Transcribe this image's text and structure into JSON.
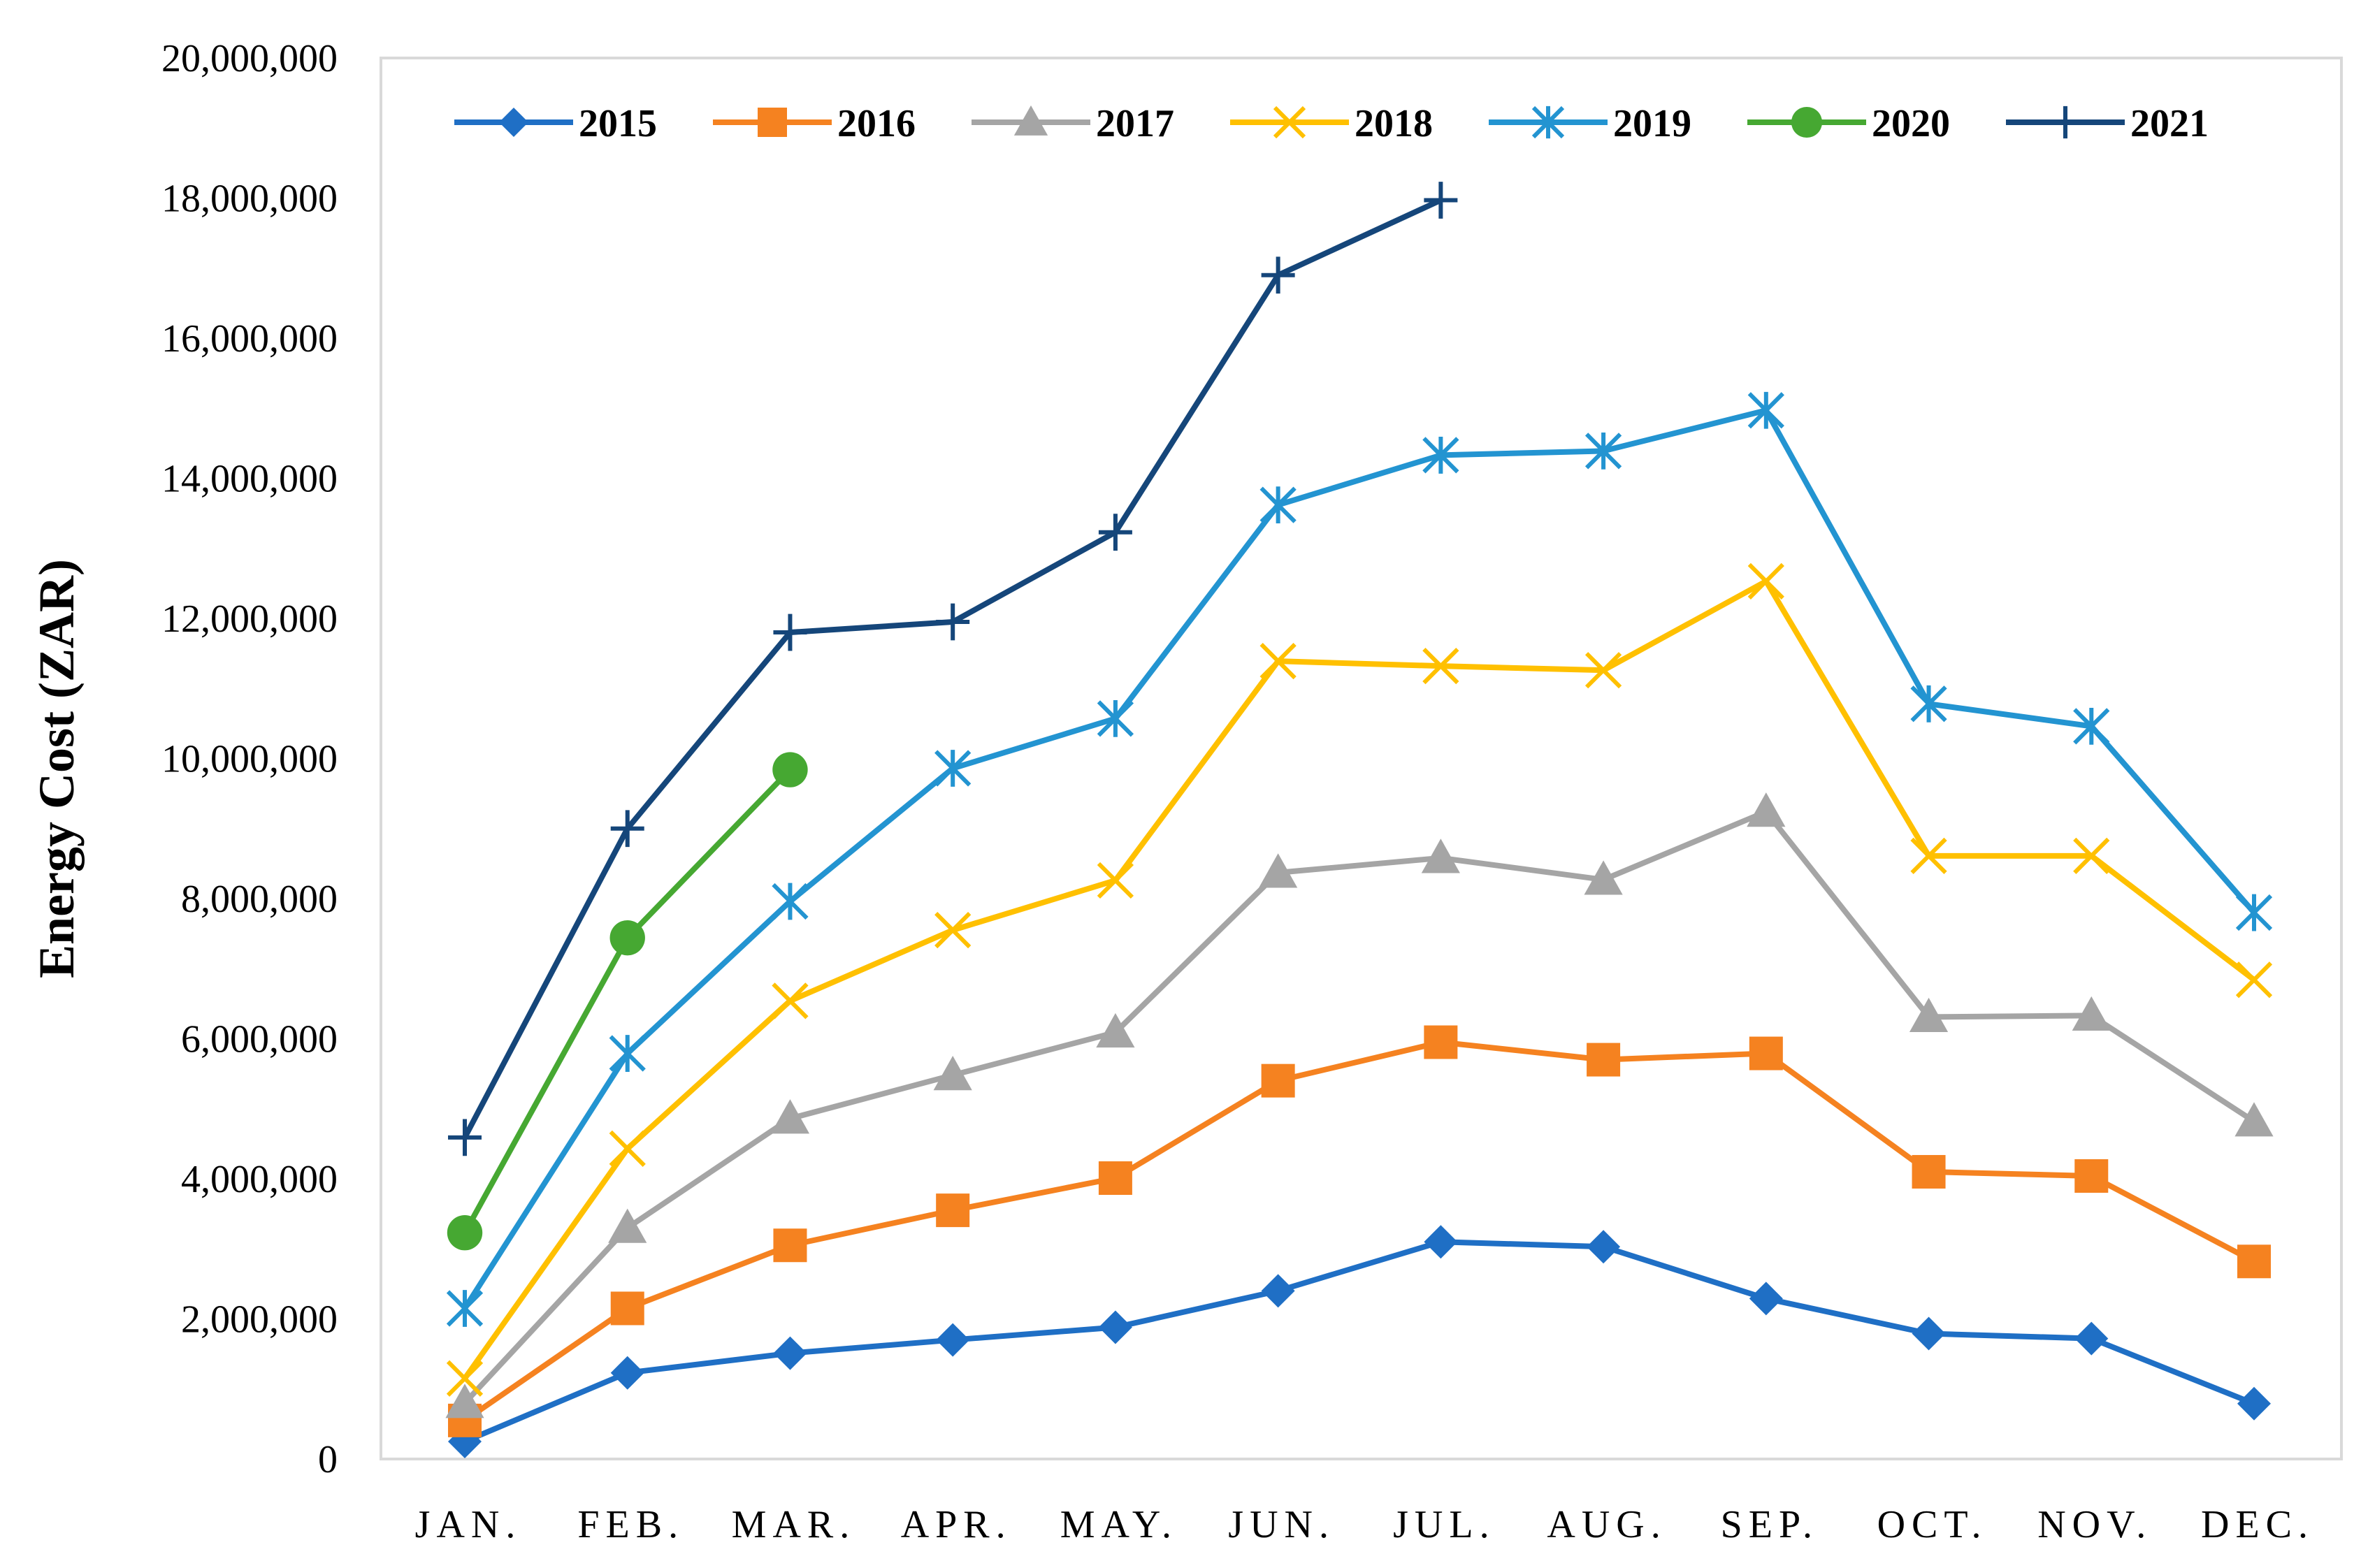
{
  "chart_data": {
    "type": "line",
    "title": "",
    "xlabel": "",
    "ylabel": "Energy Cost (ZAR)",
    "ylim": [
      0,
      20000000
    ],
    "y_ticks": [
      0,
      2000000,
      4000000,
      6000000,
      8000000,
      10000000,
      12000000,
      14000000,
      16000000,
      18000000,
      20000000
    ],
    "y_tick_labels": [
      "0",
      "2,000,000",
      "4,000,000",
      "6,000,000",
      "8,000,000",
      "10,000,000",
      "12,000,000",
      "14,000,000",
      "16,000,000",
      "18,000,000",
      "20,000,000"
    ],
    "categories": [
      "JAN.",
      "FEB.",
      "MAR.",
      "APR.",
      "MAY.",
      "JUN.",
      "JUL.",
      "AUG.",
      "SEP.",
      "OCT.",
      "NOV.",
      "DEC."
    ],
    "grid": false,
    "legend_position": "top",
    "series": [
      {
        "name": "2015",
        "color": "#1F6FC5",
        "marker": "diamond",
        "values": [
          250000,
          1230000,
          1510000,
          1700000,
          1880000,
          2400000,
          3100000,
          3030000,
          2290000,
          1790000,
          1720000,
          790000
        ]
      },
      {
        "name": "2016",
        "color": "#F58220",
        "marker": "square",
        "values": [
          550000,
          2150000,
          3050000,
          3550000,
          4010000,
          5400000,
          5950000,
          5700000,
          5790000,
          4100000,
          4040000,
          2820000
        ]
      },
      {
        "name": "2017",
        "color": "#A5A5A5",
        "marker": "triangle",
        "values": [
          800000,
          3300000,
          4860000,
          5480000,
          6090000,
          8370000,
          8580000,
          8270000,
          9240000,
          6310000,
          6330000,
          4820000
        ]
      },
      {
        "name": "2018",
        "color": "#FFC000",
        "marker": "x",
        "values": [
          1150000,
          4430000,
          6540000,
          7550000,
          8260000,
          11390000,
          11320000,
          11260000,
          12530000,
          8610000,
          8610000,
          6840000
        ]
      },
      {
        "name": "2019",
        "color": "#2394D1",
        "marker": "asterisk",
        "values": [
          2150000,
          5790000,
          7960000,
          9860000,
          10570000,
          13620000,
          14330000,
          14390000,
          14970000,
          10780000,
          10460000,
          7800000
        ]
      },
      {
        "name": "2020",
        "color": "#46A832",
        "marker": "circle",
        "values": [
          3230000,
          7440000,
          9840000,
          null,
          null,
          null,
          null,
          null,
          null,
          null,
          null,
          null
        ]
      },
      {
        "name": "2021",
        "color": "#15467A",
        "marker": "plus",
        "values": [
          4590000,
          9000000,
          11800000,
          11950000,
          13230000,
          16900000,
          17970000,
          null,
          null,
          null,
          null,
          null
        ]
      }
    ]
  }
}
